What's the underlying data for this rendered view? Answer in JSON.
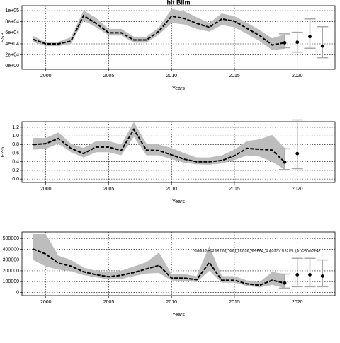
{
  "chart_data": [
    {
      "type": "line",
      "title": "hit Blim",
      "xlabel": "Years",
      "ylabel": "SSB",
      "grid": true,
      "color": "#000000",
      "band_color": "#bdbdbd",
      "bar_color": "#a8a8a8",
      "xlim": [
        1998.1,
        2023
      ],
      "xticks": [
        2000,
        2005,
        2010,
        2015,
        2020
      ],
      "ylim": [
        -6000,
        109000
      ],
      "yticks": [
        {
          "value": 0,
          "label": "0e+00"
        },
        {
          "value": 20000,
          "label": "2e+04"
        },
        {
          "value": 40000,
          "label": "4e+04"
        },
        {
          "value": 60000,
          "label": "6e+04"
        },
        {
          "value": 80000,
          "label": "8e+04"
        },
        {
          "value": 100000,
          "label": "1e+05"
        }
      ],
      "x": [
        1999,
        2000,
        2001,
        2002,
        2003,
        2004,
        2005,
        2006,
        2007,
        2008,
        2009,
        2010,
        2011,
        2012,
        2013,
        2014,
        2015,
        2016,
        2017,
        2018,
        2019
      ],
      "values": [
        48000,
        40000,
        40000,
        45000,
        91000,
        77000,
        60000,
        60000,
        47000,
        47000,
        63000,
        90000,
        86000,
        77000,
        70000,
        85000,
        81000,
        68000,
        55000,
        38000,
        42000
      ],
      "upper": [
        54000,
        43000,
        44000,
        52000,
        100000,
        87000,
        67000,
        67000,
        53000,
        53000,
        70000,
        103000,
        99000,
        88000,
        78000,
        95000,
        90000,
        78000,
        65000,
        50000,
        57000
      ],
      "lower": [
        43000,
        36000,
        36000,
        40000,
        82000,
        70000,
        55000,
        55000,
        42000,
        42000,
        57000,
        78000,
        75000,
        67000,
        62000,
        74000,
        70000,
        58000,
        45000,
        29000,
        31000
      ],
      "forecast": {
        "x": [
          2019,
          2020,
          2021,
          2022
        ],
        "values": [
          42000,
          43000,
          53000,
          36000
        ],
        "lower": [
          33000,
          25000,
          32000,
          15000
        ],
        "upper": [
          58000,
          61000,
          85000,
          71000
        ]
      }
    },
    {
      "type": "line",
      "xlabel": "Years",
      "ylabel": "F2-5",
      "grid": true,
      "color": "#000000",
      "band_color": "#bdbdbd",
      "bar_color": "#a8a8a8",
      "xlim": [
        1998.1,
        2023
      ],
      "xticks": [
        2000,
        2005,
        2010,
        2015,
        2020
      ],
      "ylim": [
        -0.08,
        1.33
      ],
      "yticks": [
        {
          "value": 0,
          "label": "0.0"
        },
        0.2,
        0.4,
        0.6,
        0.8,
        {
          "value": 1,
          "label": "1.0"
        },
        1.2
      ],
      "x": [
        1999,
        2000,
        2001,
        2002,
        2003,
        2004,
        2005,
        2006,
        2007,
        2008,
        2009,
        2010,
        2011,
        2012,
        2013,
        2014,
        2015,
        2016,
        2017,
        2018,
        2019
      ],
      "values": [
        0.8,
        0.82,
        0.94,
        0.71,
        0.59,
        0.74,
        0.74,
        0.66,
        1.15,
        0.67,
        0.66,
        0.56,
        0.46,
        0.4,
        0.4,
        0.43,
        0.54,
        0.71,
        0.69,
        0.67,
        0.39
      ],
      "upper": [
        0.95,
        0.95,
        1.08,
        0.82,
        0.72,
        0.88,
        0.88,
        0.8,
        1.32,
        0.82,
        0.8,
        0.72,
        0.6,
        0.5,
        0.5,
        0.55,
        0.68,
        0.88,
        0.92,
        1.02,
        0.72
      ],
      "lower": [
        0.68,
        0.7,
        0.82,
        0.62,
        0.5,
        0.62,
        0.62,
        0.55,
        0.98,
        0.55,
        0.55,
        0.46,
        0.38,
        0.34,
        0.33,
        0.36,
        0.44,
        0.55,
        0.52,
        0.4,
        0.22
      ],
      "forecast": {
        "x": [
          2019,
          2020
        ],
        "values": [
          0.39,
          0.59
        ],
        "lower": [
          0.22,
          0.24
        ],
        "upper": [
          0.7,
          1.37
        ]
      }
    },
    {
      "type": "line",
      "xlabel": "Years",
      "grid": true,
      "color": "#000000",
      "band_color": "#bdbdbd",
      "bar_color": "#a8a8a8",
      "annotation": "stockassessment.org, smg_fo-cs-k_RevFPA_Aug2020, f13219 , git: c28bdc3e4e",
      "xlim": [
        1998.1,
        2023
      ],
      "xticks": [
        2000,
        2005,
        2010,
        2015,
        2020
      ],
      "ylim": [
        -30000,
        560000
      ],
      "yticks": [
        0,
        100000,
        200000,
        300000,
        400000,
        500000
      ],
      "x": [
        1999,
        2000,
        2001,
        2002,
        2003,
        2004,
        2005,
        2006,
        2007,
        2008,
        2009,
        2010,
        2011,
        2012,
        2013,
        2014,
        2015,
        2016,
        2017,
        2018,
        2019
      ],
      "values": [
        401000,
        355000,
        270000,
        243000,
        191000,
        164000,
        145000,
        158000,
        184000,
        217000,
        250000,
        132000,
        132000,
        118000,
        276000,
        112000,
        112000,
        79000,
        66000,
        112000,
        86000
      ],
      "upper": [
        540000,
        540000,
        340000,
        300000,
        230000,
        200000,
        185000,
        200000,
        240000,
        280000,
        370000,
        170000,
        170000,
        150000,
        430000,
        150000,
        150000,
        110000,
        95000,
        190000,
        170000
      ],
      "lower": [
        300000,
        240000,
        210000,
        195000,
        160000,
        140000,
        120000,
        125000,
        150000,
        175000,
        180000,
        110000,
        105000,
        95000,
        200000,
        90000,
        90000,
        60000,
        45000,
        70000,
        40000
      ],
      "forecast": {
        "x": [
          2019,
          2020,
          2021,
          2022
        ],
        "values": [
          86000,
          164000,
          164000,
          151000
        ],
        "lower": [
          40000,
          53000,
          53000,
          53000
        ],
        "upper": [
          170000,
          316000,
          316000,
          300000
        ]
      }
    }
  ]
}
